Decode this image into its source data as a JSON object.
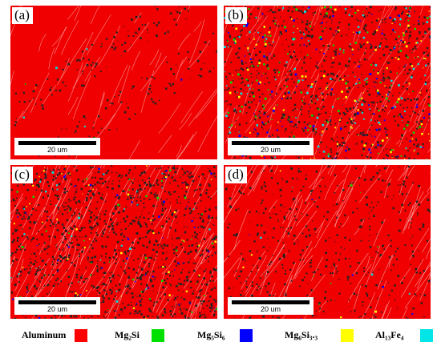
{
  "panels": [
    {
      "label": "(a)",
      "scale": "20 um"
    },
    {
      "label": "(b)",
      "scale": "20 um"
    },
    {
      "label": "(c)",
      "scale": "20 um"
    },
    {
      "label": "(d)",
      "scale": "20 um"
    }
  ],
  "legend": [
    {
      "name": "Aluminum",
      "color": "#ff0000"
    },
    {
      "name": "Mg₂Si",
      "color": "#00e000"
    },
    {
      "name": "Mg₅Si₆",
      "color": "#0000ff"
    },
    {
      "name": "Mg₆Si₃.₃",
      "color": "#ffff00"
    },
    {
      "name": "Al₁₃Fe₄",
      "color": "#00e5e5"
    }
  ]
}
